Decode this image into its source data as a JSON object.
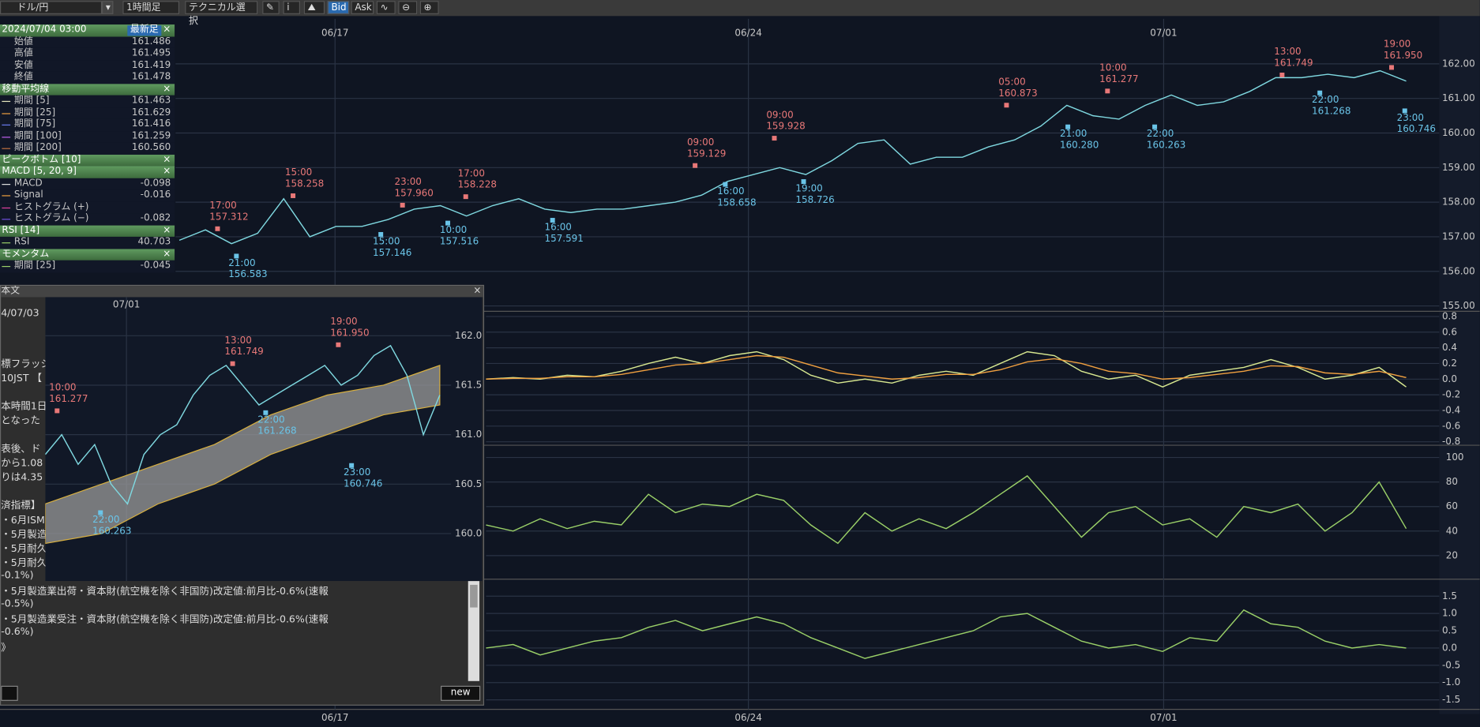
{
  "toolbar": {
    "pair": "ドル/円",
    "timeframe": "1時間足",
    "technical": "テクニカル選択",
    "bid": "Bid",
    "ask": "Ask"
  },
  "info_panel": {
    "close_label": "×",
    "sections": [
      {
        "title": "2024/07/04 03:00",
        "button": "最新足",
        "items": [
          {
            "label": "始値",
            "value": "161.486"
          },
          {
            "label": "高値",
            "value": "161.495"
          },
          {
            "label": "安値",
            "value": "161.419"
          },
          {
            "label": "終値",
            "value": "161.478"
          }
        ]
      },
      {
        "title": "移動平均線",
        "items": [
          {
            "label": "期間 [5]",
            "value": "161.463",
            "color": "#e8e8c0"
          },
          {
            "label": "期間 [25]",
            "value": "161.629",
            "color": "#f0a040"
          },
          {
            "label": "期間 [75]",
            "value": "161.416",
            "color": "#6a7cf0"
          },
          {
            "label": "期間 [100]",
            "value": "161.259",
            "color": "#c060f0"
          },
          {
            "label": "期間 [200]",
            "value": "160.560",
            "color": "#c07040"
          }
        ]
      },
      {
        "title": "ピークボトム [10]"
      },
      {
        "title": "MACD [5, 20, 9]",
        "items": [
          {
            "label": "MACD",
            "value": "-0.098",
            "color": "#e0e0e0"
          },
          {
            "label": "Signal",
            "value": "-0.016",
            "color": "#f0a040"
          },
          {
            "label": "ヒストグラム (+)",
            "color": "#e040a0"
          },
          {
            "label": "ヒストグラム (−)",
            "value": "-0.082",
            "color": "#7050e0"
          }
        ]
      },
      {
        "title": "RSI [14]",
        "items": [
          {
            "label": "RSI",
            "value": "40.703",
            "color": "#9ad068"
          }
        ]
      },
      {
        "title": "モメンタム",
        "items": [
          {
            "label": "期間 [25]",
            "value": "-0.045",
            "color": "#9ad068"
          }
        ]
      }
    ]
  },
  "main_chart": {
    "ylim": [
      154.9,
      163.3
    ],
    "price_ticks": [
      {
        "value": 162,
        "label": "162.00"
      },
      {
        "value": 161,
        "label": "161.00"
      },
      {
        "value": 160,
        "label": "160.00"
      },
      {
        "value": 159,
        "label": "159.00"
      },
      {
        "value": 158,
        "label": "158.00"
      },
      {
        "value": 157,
        "label": "157.00"
      },
      {
        "value": 156,
        "label": "156.00"
      },
      {
        "value": 155,
        "label": "155.00"
      }
    ],
    "dates": [
      "06/17",
      "06/24",
      "07/01"
    ],
    "close_color": "#7fd8e0",
    "close": [
      156.9,
      157.2,
      156.8,
      157.1,
      158.1,
      157.0,
      157.3,
      157.3,
      157.5,
      157.8,
      157.9,
      157.6,
      157.9,
      158.1,
      157.8,
      157.7,
      157.8,
      157.8,
      157.9,
      158.0,
      158.2,
      158.6,
      158.8,
      159.0,
      158.8,
      159.2,
      159.7,
      159.8,
      159.1,
      159.3,
      159.3,
      159.6,
      159.8,
      160.2,
      160.8,
      160.5,
      160.4,
      160.8,
      161.1,
      160.8,
      160.9,
      161.2,
      161.6,
      161.6,
      161.7,
      161.6,
      161.8,
      161.5
    ],
    "annotations": [
      {
        "kind": "peak",
        "time": "17:00",
        "price": "157.312"
      },
      {
        "kind": "peak",
        "time": "15:00",
        "price": "158.258"
      },
      {
        "kind": "peak",
        "time": "23:00",
        "price": "157.960"
      },
      {
        "kind": "peak",
        "time": "17:00",
        "price": "158.228"
      },
      {
        "kind": "peak",
        "time": "09:00",
        "price": "159.129"
      },
      {
        "kind": "peak",
        "time": "09:00",
        "price": "159.928"
      },
      {
        "kind": "peak",
        "time": "05:00",
        "price": "160.873"
      },
      {
        "kind": "peak",
        "time": "10:00",
        "price": "161.277"
      },
      {
        "kind": "peak",
        "time": "13:00",
        "price": "161.749"
      },
      {
        "kind": "peak",
        "time": "19:00",
        "price": "161.950"
      },
      {
        "kind": "bottom",
        "time": "21:00",
        "price": "156.583"
      },
      {
        "kind": "bottom",
        "time": "15:00",
        "price": "157.146"
      },
      {
        "kind": "bottom",
        "time": "10:00",
        "price": "157.516"
      },
      {
        "kind": "bottom",
        "time": "16:00",
        "price": "157.591"
      },
      {
        "kind": "bottom",
        "time": "16:00",
        "price": "158.658"
      },
      {
        "kind": "bottom",
        "time": "19:00",
        "price": "158.726"
      },
      {
        "kind": "bottom",
        "time": "21:00",
        "price": "160.280"
      },
      {
        "kind": "bottom",
        "time": "22:00",
        "price": "160.263"
      },
      {
        "kind": "bottom",
        "time": "22:00",
        "price": "161.268"
      },
      {
        "kind": "bottom",
        "time": "23:00",
        "price": "160.746"
      }
    ]
  },
  "macd": {
    "ylim": [
      -0.82,
      0.83
    ],
    "yticks": [
      0.8,
      0.6,
      0.4,
      0.2,
      {
        "value": 0,
        "label": "0.0"
      },
      -0.2,
      -0.4,
      -0.6,
      -0.8
    ],
    "series": [
      {
        "color": "#d8e890",
        "values": [
          0.0,
          0.02,
          0.0,
          0.05,
          0.03,
          0.1,
          0.2,
          0.28,
          0.2,
          0.3,
          0.35,
          0.25,
          0.05,
          -0.05,
          0.0,
          -0.05,
          0.05,
          0.1,
          0.05,
          0.2,
          0.35,
          0.3,
          0.1,
          0.0,
          0.05,
          -0.1,
          0.05,
          0.1,
          0.15,
          0.25,
          0.15,
          0.0,
          0.05,
          0.15,
          -0.1
        ]
      },
      {
        "color": "#f0a040",
        "values": [
          0.0,
          0.01,
          0.01,
          0.03,
          0.03,
          0.06,
          0.12,
          0.18,
          0.2,
          0.25,
          0.3,
          0.28,
          0.18,
          0.08,
          0.04,
          0.0,
          0.02,
          0.06,
          0.06,
          0.12,
          0.22,
          0.26,
          0.2,
          0.1,
          0.07,
          0.0,
          0.02,
          0.06,
          0.1,
          0.17,
          0.16,
          0.08,
          0.06,
          0.1,
          0.02
        ]
      }
    ]
  },
  "rsi": {
    "ylim": [
      2.3,
      107.7
    ],
    "yticks": [
      100,
      80,
      60,
      40,
      20
    ],
    "color": "#9ad068",
    "values": [
      45,
      40,
      50,
      42,
      48,
      45,
      70,
      55,
      62,
      60,
      70,
      65,
      45,
      30,
      55,
      40,
      50,
      42,
      55,
      70,
      85,
      60,
      35,
      55,
      60,
      45,
      50,
      35,
      60,
      55,
      62,
      40,
      55,
      80,
      42
    ]
  },
  "momentum": {
    "ylim": [
      -1.72,
      1.91
    ],
    "yticks": [
      1.5,
      {
        "value": 1,
        "label": "1.0"
      },
      0.5,
      {
        "value": 0,
        "label": "0.0"
      },
      -0.5,
      {
        "value": -1,
        "label": "-1.0"
      },
      -1.5
    ],
    "color": "#9ad068",
    "values": [
      0.0,
      0.1,
      -0.2,
      0.0,
      0.2,
      0.3,
      0.6,
      0.8,
      0.5,
      0.7,
      0.9,
      0.7,
      0.3,
      0.0,
      -0.3,
      -0.1,
      0.1,
      0.3,
      0.5,
      0.9,
      1.0,
      0.6,
      0.2,
      0.0,
      0.1,
      -0.1,
      0.3,
      0.2,
      1.1,
      0.7,
      0.6,
      0.2,
      0.0,
      0.1,
      0.0
    ]
  },
  "news_window": {
    "title": "本文",
    "button": "new",
    "lines": [
      "4/07/03",
      "標フラッシ",
      "10JST 【",
      "本時間1日",
      "となった",
      "表後、ド",
      "から1.08",
      "りは4.35",
      "済指標】",
      "・6月ISM",
      "・5月製造",
      "・5月耐久",
      "・5月耐久",
      "-0.1%)",
      "・5月製造業出荷・資本財(航空機を除く非国防)改定値:前月比-0.6%(速報",
      "-0.5%)",
      "・5月製造業受注・資本財(航空機を除く非国防)改定値:前月比-0.6%(速報",
      "-0.6%)",
      "》"
    ],
    "inset": {
      "ylim": [
        159.52,
        162.39
      ],
      "yticks": [
        {
          "value": 162,
          "label": "162.0"
        },
        161.5,
        {
          "value": 161,
          "label": "161.0"
        },
        160.5,
        {
          "value": 160,
          "label": "160.0"
        }
      ],
      "date": "07/01",
      "close_color": "#7fd8e0",
      "close": [
        160.8,
        161.0,
        160.7,
        160.9,
        160.5,
        160.3,
        160.8,
        161.0,
        161.1,
        161.4,
        161.6,
        161.7,
        161.5,
        161.3,
        161.4,
        161.5,
        161.6,
        161.7,
        161.5,
        161.6,
        161.8,
        161.9,
        161.6,
        161.0,
        161.4
      ],
      "cloud_upper": [
        160.3,
        160.5,
        160.7,
        160.9,
        161.2,
        161.4,
        161.5,
        161.7
      ],
      "cloud_lower": [
        159.9,
        160.0,
        160.3,
        160.5,
        160.8,
        161.0,
        161.2,
        161.3
      ],
      "annotations": [
        {
          "kind": "peak",
          "time": "10:00",
          "price": "161.277"
        },
        {
          "kind": "peak",
          "time": "13:00",
          "price": "161.749"
        },
        {
          "kind": "peak",
          "time": "19:00",
          "price": "161.950"
        },
        {
          "kind": "bottom",
          "time": "22:00",
          "price": "161.268"
        },
        {
          "kind": "bottom",
          "time": "22:00",
          "price": "160.263"
        },
        {
          "kind": "bottom",
          "time": "23:00",
          "price": "160.746"
        }
      ]
    }
  }
}
